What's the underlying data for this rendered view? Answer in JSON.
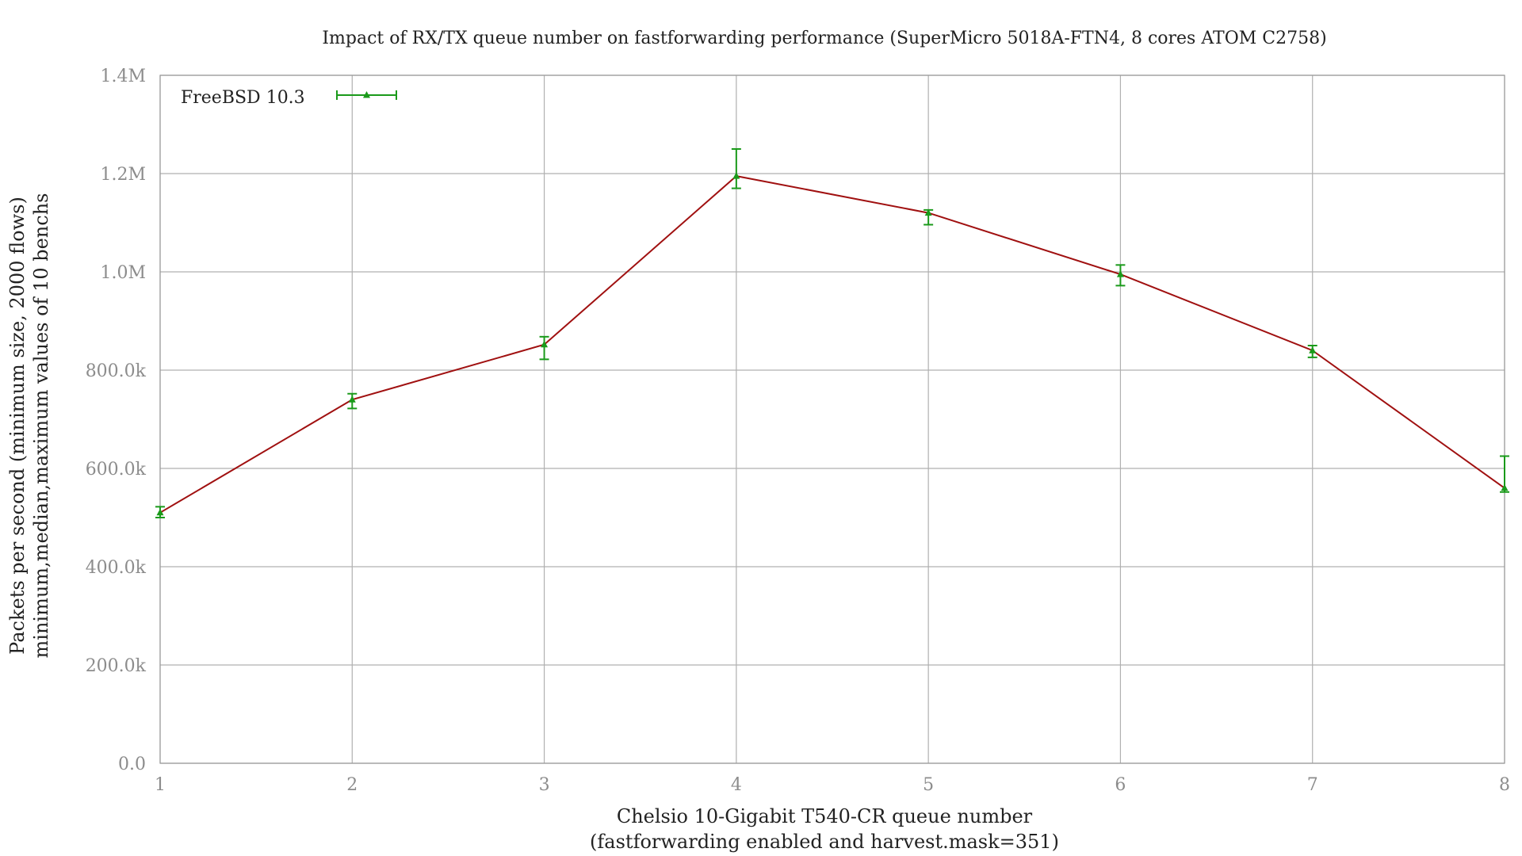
{
  "chart_data": {
    "type": "line",
    "title": "Impact of RX/TX queue number on fastforwarding performance (SuperMicro 5018A-FTN4, 8 cores ATOM C2758)",
    "xlabel": "Chelsio 10-Gigabit T540-CR queue number",
    "xlabel2": "(fastforwarding enabled and harvest.mask=351)",
    "ylabel": "Packets per second (minimum size, 2000 flows)",
    "ylabel2": "minimum,median,maximum values of 10 benchs",
    "x": [
      1,
      2,
      3,
      4,
      5,
      6,
      7,
      8
    ],
    "xlim": [
      1,
      8
    ],
    "ylim": [
      0,
      1400000
    ],
    "x_ticks": [
      "1",
      "2",
      "3",
      "4",
      "5",
      "6",
      "7",
      "8"
    ],
    "y_ticks": [
      {
        "value": 0,
        "label": "0.0"
      },
      {
        "value": 200000,
        "label": "200.0k"
      },
      {
        "value": 400000,
        "label": "400.0k"
      },
      {
        "value": 600000,
        "label": "600.0k"
      },
      {
        "value": 800000,
        "label": "800.0k"
      },
      {
        "value": 1000000,
        "label": "1.0M"
      },
      {
        "value": 1200000,
        "label": "1.2M"
      },
      {
        "value": 1400000,
        "label": "1.4M"
      }
    ],
    "grid": true,
    "legend_position": "top-left",
    "series": [
      {
        "name": "FreeBSD 10.3",
        "line_color": "#a01010",
        "marker_color": "#1a9a1a",
        "median": [
          510000,
          740000,
          852000,
          1195000,
          1120000,
          995000,
          840000,
          560000
        ],
        "min": [
          500000,
          722000,
          822000,
          1170000,
          1096000,
          972000,
          826000,
          552000
        ],
        "max": [
          522000,
          752000,
          868000,
          1250000,
          1126000,
          1014000,
          850000,
          625000
        ]
      }
    ]
  }
}
